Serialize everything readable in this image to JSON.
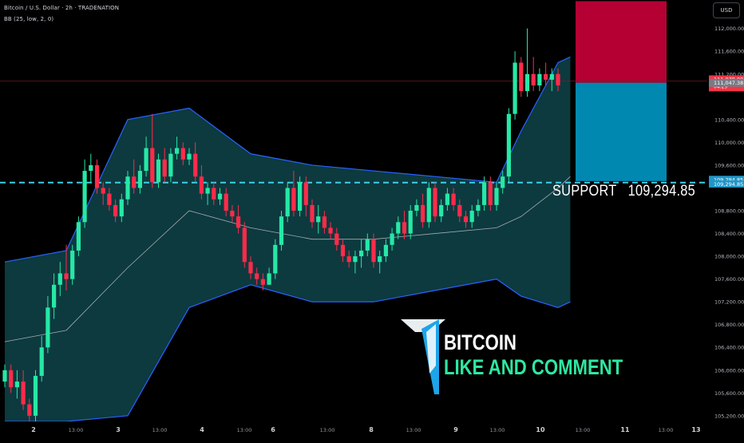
{
  "header": {
    "symbol_line": "Bitcoin / U.S. Dollar · 2h · TRADENATION",
    "indicator_line": "BB (25, low, 2, 0)"
  },
  "currency_button": "USD",
  "annotations": {
    "support_label": "SUPPORT   109,294.85",
    "brand_title": "BITCOIN",
    "brand_subtitle": "LIKE AND COMMENT"
  },
  "colors": {
    "background": "#000000",
    "up_candle": "#26e8a6",
    "down_candle": "#ff2b4a",
    "band_fill": "#0c3a3f",
    "band_line": "#2962ff",
    "basis_line": "#a9aaae",
    "support_line": "#3fd0e8",
    "stop_zone": "#b50033",
    "target_zone": "#0088b0",
    "brand_green": "#2ee8a0"
  },
  "chart_data": {
    "type": "candlestick",
    "title": "Bitcoin / U.S. Dollar · 2h · TRADENATION",
    "indicator": "BB (25, low, 2, 0)",
    "ylim": [
      105100,
      112500
    ],
    "y_ticks": [
      "112,000.00",
      "111,600.00",
      "111,200.00",
      "110,400.00",
      "110,000.00",
      "109,600.00",
      "108,800.00",
      "108,400.00",
      "108,000.00",
      "107,600.00",
      "107,200.00",
      "106,800.00",
      "106,400.00",
      "106,000.00",
      "105,600.00",
      "105,200.00"
    ],
    "x_ticks": [
      "2",
      "13:00",
      "3",
      "13:00",
      "4",
      "13:00",
      "6",
      "13:00",
      "8",
      "13:00",
      "9",
      "13:00",
      "10",
      "13:00",
      "11",
      "13:00",
      "13"
    ],
    "price_tags": [
      {
        "label": "111,078.00",
        "sub": "04:29",
        "kind": "last",
        "value": 111078
      },
      {
        "label": "111,047.38",
        "kind": "grey",
        "value": 111047
      },
      {
        "label": "109,294.85",
        "kind": "support",
        "value": 109350
      },
      {
        "label": "109,294.85",
        "kind": "support",
        "value": 109270
      }
    ],
    "support_level": 109294.85,
    "last_price": 111078.0,
    "position": {
      "entry": 111047.38,
      "stop": 112480,
      "target": 109320
    },
    "candles": [
      [
        105800,
        106100,
        105700,
        106000
      ],
      [
        106000,
        106100,
        105600,
        105700
      ],
      [
        105700,
        106000,
        105500,
        105800
      ],
      [
        105800,
        106000,
        105300,
        105400
      ],
      [
        105400,
        105500,
        105100,
        105200
      ],
      [
        105200,
        106000,
        105100,
        105900
      ],
      [
        105900,
        106600,
        105800,
        106400
      ],
      [
        106400,
        107300,
        106300,
        107100
      ],
      [
        107100,
        107700,
        106900,
        107500
      ],
      [
        107500,
        107900,
        107300,
        107700
      ],
      [
        107700,
        108200,
        107400,
        107600
      ],
      [
        107600,
        108200,
        107500,
        108100
      ],
      [
        108100,
        108700,
        108000,
        108600
      ],
      [
        108600,
        109700,
        108500,
        109500
      ],
      [
        109500,
        109800,
        109300,
        109600
      ],
      [
        109600,
        109700,
        109100,
        109200
      ],
      [
        109200,
        109300,
        108900,
        109100
      ],
      [
        109100,
        109200,
        108800,
        108900
      ],
      [
        108900,
        109000,
        108600,
        108700
      ],
      [
        108700,
        109100,
        108600,
        109000
      ],
      [
        109000,
        109500,
        108900,
        109400
      ],
      [
        109400,
        109700,
        109100,
        109200
      ],
      [
        109200,
        109600,
        109100,
        109500
      ],
      [
        109500,
        110100,
        109400,
        109900
      ],
      [
        109900,
        110500,
        109200,
        109300
      ],
      [
        109300,
        109800,
        109200,
        109700
      ],
      [
        109700,
        109900,
        109300,
        109400
      ],
      [
        109400,
        109900,
        109300,
        109800
      ],
      [
        109800,
        110100,
        109700,
        109900
      ],
      [
        109900,
        110000,
        109600,
        109700
      ],
      [
        109700,
        109900,
        109600,
        109800
      ],
      [
        109800,
        110000,
        109300,
        109400
      ],
      [
        109400,
        109600,
        109000,
        109100
      ],
      [
        109100,
        109300,
        108900,
        109200
      ],
      [
        109200,
        109300,
        108900,
        109000
      ],
      [
        109000,
        109200,
        108900,
        109100
      ],
      [
        109100,
        109200,
        108700,
        108800
      ],
      [
        108800,
        108900,
        108600,
        108700
      ],
      [
        108700,
        108900,
        108400,
        108500
      ],
      [
        108500,
        108600,
        107800,
        107900
      ],
      [
        107900,
        108000,
        107600,
        107700
      ],
      [
        107700,
        107800,
        107500,
        107600
      ],
      [
        107600,
        107700,
        107400,
        107500
      ],
      [
        107500,
        107800,
        107500,
        107700
      ],
      [
        107700,
        108300,
        107600,
        108200
      ],
      [
        108200,
        108800,
        108100,
        108700
      ],
      [
        108700,
        109300,
        108600,
        109200
      ],
      [
        109200,
        109500,
        108700,
        108800
      ],
      [
        108800,
        109400,
        108700,
        109300
      ],
      [
        109300,
        109400,
        108700,
        108900
      ],
      [
        108900,
        109000,
        108500,
        108600
      ],
      [
        108600,
        108900,
        108400,
        108700
      ],
      [
        108700,
        108800,
        108400,
        108500
      ],
      [
        108500,
        108600,
        108300,
        108400
      ],
      [
        108400,
        108500,
        108100,
        108200
      ],
      [
        108200,
        108300,
        107900,
        108000
      ],
      [
        108000,
        108100,
        107800,
        107900
      ],
      [
        107900,
        108100,
        107700,
        108000
      ],
      [
        108000,
        108300,
        107800,
        108100
      ],
      [
        108100,
        108400,
        108000,
        108300
      ],
      [
        108300,
        108400,
        107800,
        107900
      ],
      [
        107900,
        108100,
        107700,
        108000
      ],
      [
        108000,
        108300,
        107900,
        108200
      ],
      [
        108200,
        108500,
        108100,
        108400
      ],
      [
        108400,
        108700,
        108300,
        108600
      ],
      [
        108600,
        108800,
        108300,
        108400
      ],
      [
        108400,
        108900,
        108300,
        108800
      ],
      [
        108800,
        109000,
        108700,
        108900
      ],
      [
        108900,
        109100,
        108500,
        108600
      ],
      [
        108600,
        109300,
        108500,
        109200
      ],
      [
        109200,
        109300,
        108600,
        108700
      ],
      [
        108700,
        109000,
        108600,
        108900
      ],
      [
        108900,
        109200,
        108800,
        109100
      ],
      [
        109100,
        109200,
        108800,
        108900
      ],
      [
        108900,
        109000,
        108600,
        108700
      ],
      [
        108700,
        108800,
        108500,
        108600
      ],
      [
        108600,
        108900,
        108500,
        108800
      ],
      [
        108800,
        109000,
        108700,
        108900
      ],
      [
        108900,
        109400,
        108800,
        109300
      ],
      [
        109300,
        109400,
        108800,
        108900
      ],
      [
        108900,
        109300,
        108800,
        109200
      ],
      [
        109200,
        109500,
        109100,
        109400
      ],
      [
        109400,
        110600,
        109300,
        110500
      ],
      [
        110500,
        111600,
        110400,
        111400
      ],
      [
        111400,
        111500,
        110800,
        110900
      ],
      [
        110900,
        112000,
        110800,
        111200
      ],
      [
        111200,
        111500,
        110900,
        111000
      ],
      [
        111000,
        111300,
        110900,
        111200
      ],
      [
        111200,
        111400,
        111000,
        111100
      ],
      [
        111100,
        111300,
        110900,
        111200
      ],
      [
        111200,
        111300,
        110900,
        111000
      ]
    ],
    "bb_upper": [
      [
        0,
        107900
      ],
      [
        10,
        108100
      ],
      [
        20,
        110400
      ],
      [
        30,
        110600
      ],
      [
        40,
        109800
      ],
      [
        50,
        109600
      ],
      [
        60,
        109500
      ],
      [
        70,
        109400
      ],
      [
        80,
        109300
      ],
      [
        84,
        110200
      ],
      [
        90,
        111400
      ],
      [
        92,
        111500
      ]
    ],
    "bb_lower": [
      [
        0,
        105100
      ],
      [
        10,
        105100
      ],
      [
        20,
        105200
      ],
      [
        30,
        107100
      ],
      [
        40,
        107500
      ],
      [
        50,
        107200
      ],
      [
        60,
        107200
      ],
      [
        70,
        107400
      ],
      [
        80,
        107600
      ],
      [
        84,
        107300
      ],
      [
        90,
        107100
      ],
      [
        92,
        107200
      ]
    ],
    "bb_basis": [
      [
        0,
        106500
      ],
      [
        10,
        106700
      ],
      [
        20,
        107800
      ],
      [
        30,
        108800
      ],
      [
        40,
        108500
      ],
      [
        50,
        108300
      ],
      [
        60,
        108300
      ],
      [
        70,
        108400
      ],
      [
        80,
        108500
      ],
      [
        84,
        108700
      ],
      [
        90,
        109200
      ],
      [
        92,
        109400
      ]
    ]
  }
}
